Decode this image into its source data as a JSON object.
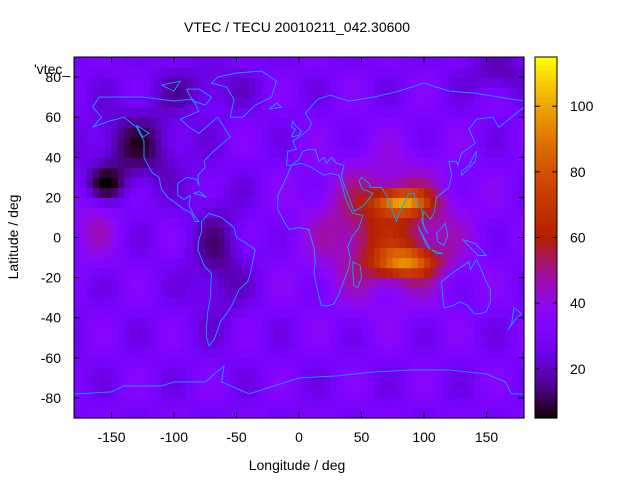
{
  "chart_data": {
    "type": "heatmap",
    "title": "VTEC / TECU 20010211_042.30600",
    "xlabel": "Longitude / deg",
    "ylabel": "Latitude / deg",
    "legend_entry": "'vtec_",
    "xlim": [
      -180,
      180
    ],
    "ylim": [
      -90,
      90
    ],
    "xticks": [
      -150,
      -100,
      -50,
      0,
      50,
      100,
      150
    ],
    "yticks": [
      -80,
      -60,
      -40,
      -20,
      0,
      20,
      40,
      60,
      80
    ],
    "colorbar": {
      "range": [
        5,
        115
      ],
      "ticks": [
        20,
        40,
        60,
        80,
        100
      ]
    },
    "grid": false,
    "features": [
      {
        "description": "equatorial anomaly crest north",
        "lon": 82,
        "lat": 18,
        "value": 112
      },
      {
        "description": "equatorial anomaly crest south",
        "lon": 85,
        "lat": -12,
        "value": 110
      },
      {
        "description": "high TEC region",
        "lon": 75,
        "lat": 5,
        "value": 72
      },
      {
        "description": "low TEC pocket",
        "lon": -155,
        "lat": 27,
        "value": 8
      },
      {
        "description": "high latitude north low",
        "lon": 160,
        "lat": 82,
        "value": 10
      }
    ]
  }
}
